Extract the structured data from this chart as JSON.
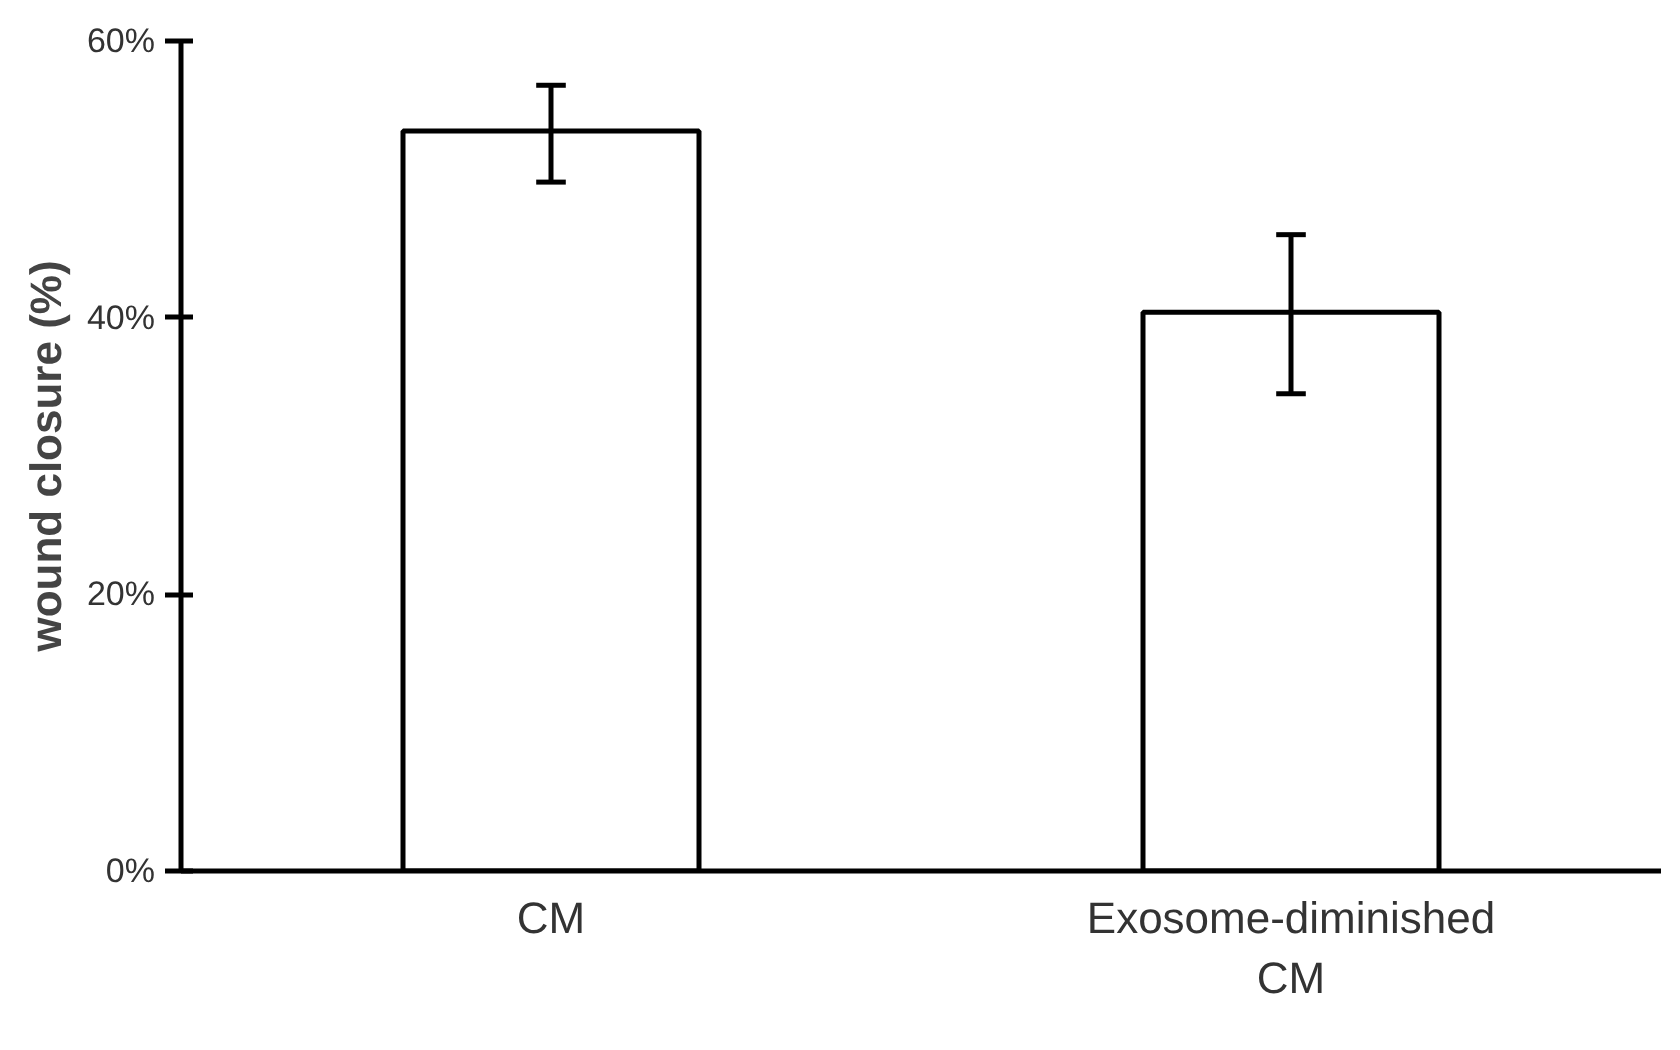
{
  "chart_data": {
    "type": "bar",
    "ylabel": "wound closure (%)",
    "categories": [
      "CM",
      "Exosome-diminished\nCM"
    ],
    "values": [
      53.5,
      40.4
    ],
    "errors": [
      [
        49.8,
        56.8
      ],
      [
        34.5,
        46.0
      ]
    ],
    "color": "#ffffff",
    "ylim": [
      0,
      60
    ],
    "yticks": [
      {
        "value": 0,
        "label": "0%"
      },
      {
        "value": 20,
        "label": "20%"
      },
      {
        "value": 40,
        "label": "40%"
      },
      {
        "value": 60,
        "label": "60%"
      }
    ],
    "grid": false
  }
}
